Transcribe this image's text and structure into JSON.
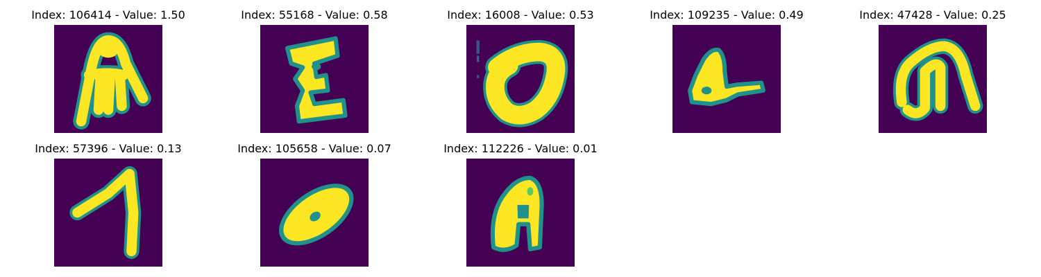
{
  "colors": {
    "background": "#440154",
    "mid": "#21918c",
    "high": "#fde725"
  },
  "panels": [
    {
      "title": "Index: 106414 - Value: 1.50",
      "glyph": "glyph-a-tall"
    },
    {
      "title": "Index: 55168 - Value: 0.58",
      "glyph": "glyph-e-blocky"
    },
    {
      "title": "Index: 16008 - Value: 0.53",
      "glyph": "glyph-zero-ring"
    },
    {
      "title": "Index: 109235 - Value: 0.49",
      "glyph": "glyph-l-blob"
    },
    {
      "title": "Index: 47428 - Value: 0.25",
      "glyph": "glyph-a-loop"
    },
    {
      "title": "Index: 57396 - Value: 0.13",
      "glyph": "glyph-seven"
    },
    {
      "title": "Index: 105658 - Value: 0.07",
      "glyph": "glyph-zero-oval"
    },
    {
      "title": "Index: 112226 - Value: 0.01",
      "glyph": "glyph-a-narrow"
    }
  ]
}
